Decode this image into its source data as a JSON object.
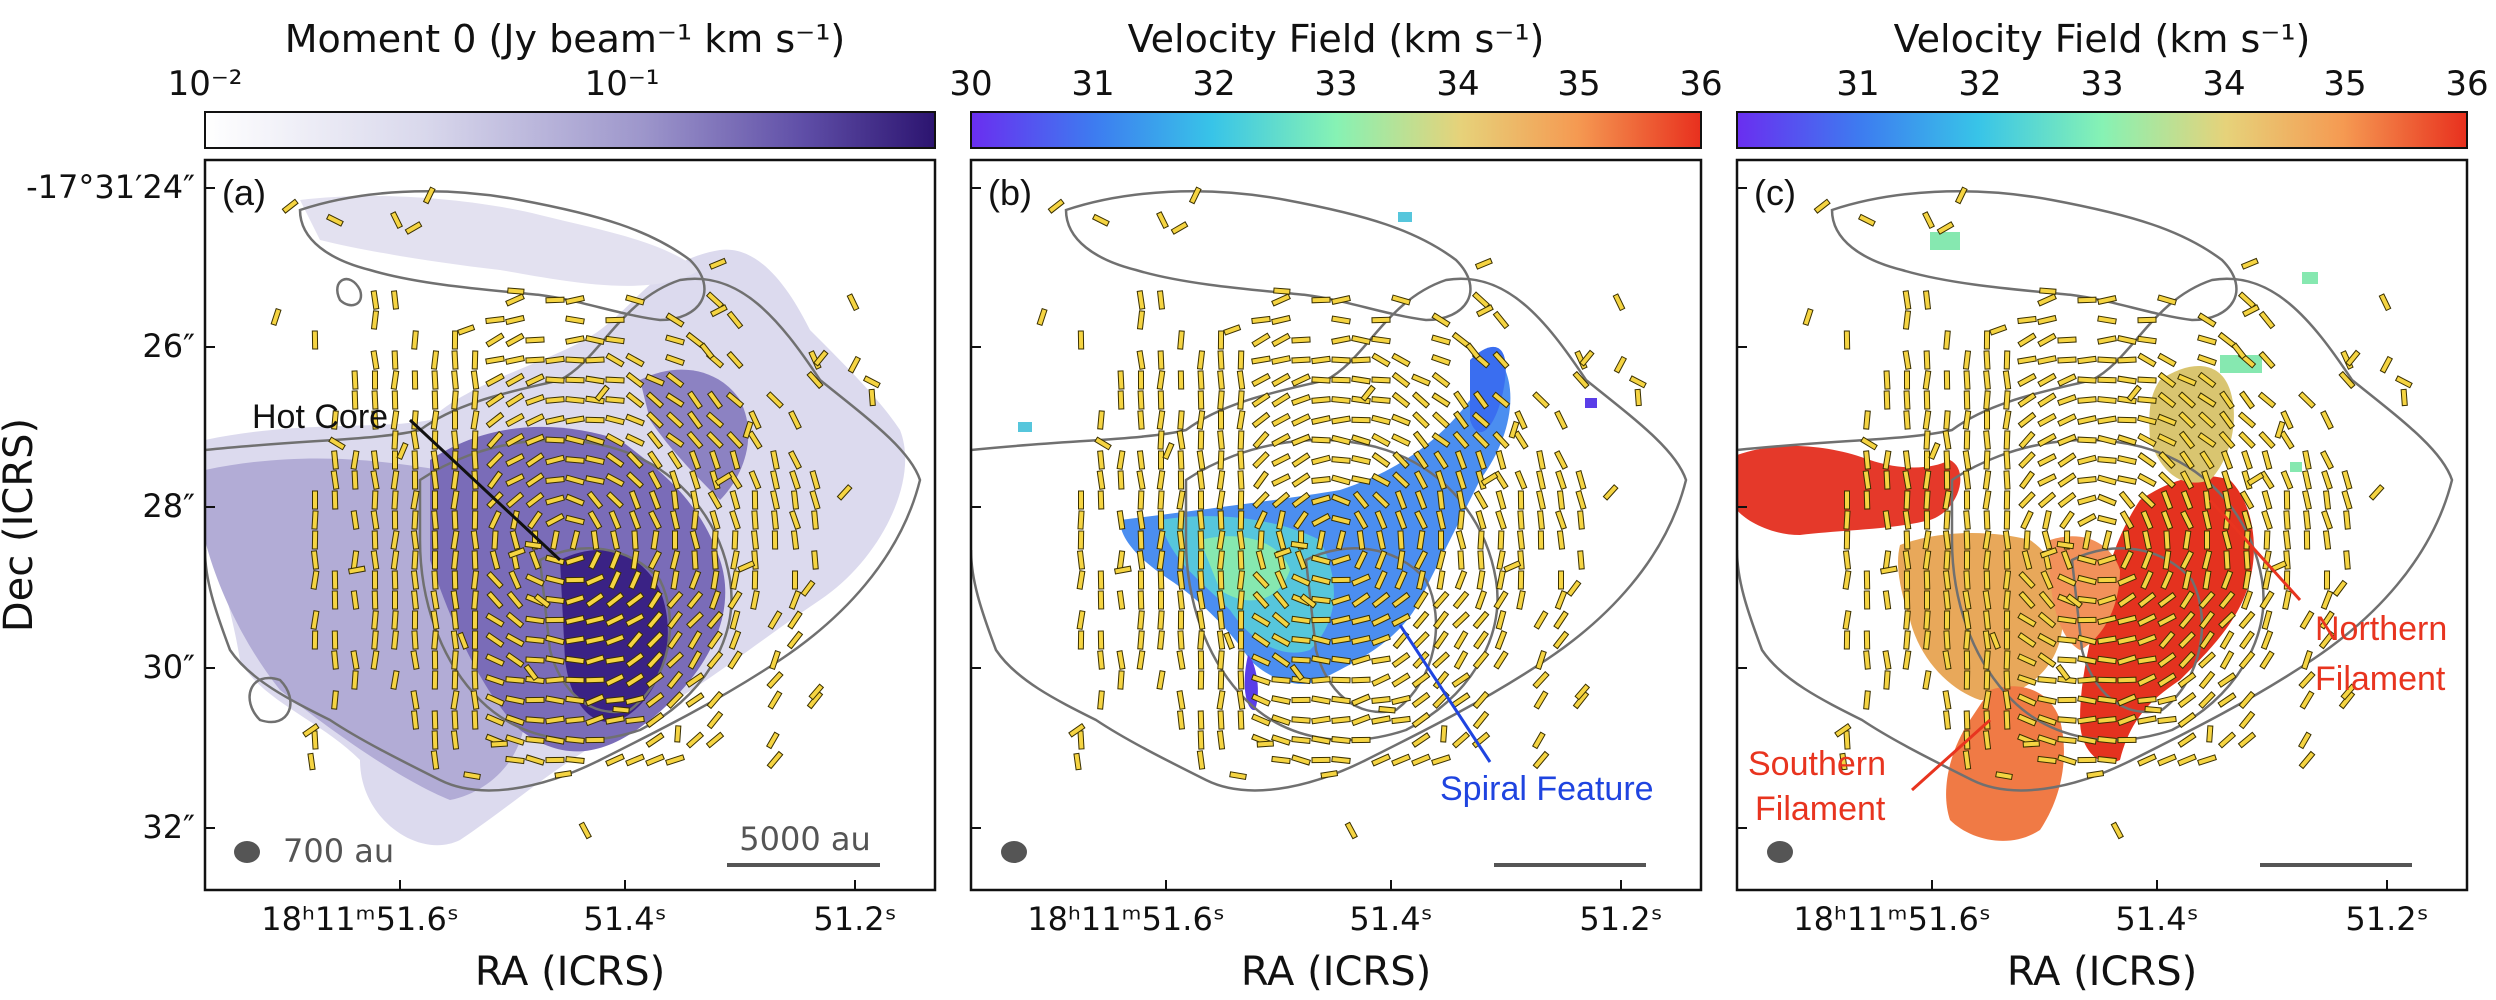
{
  "figure": {
    "panels": [
      {
        "id": "a",
        "label": "(a)",
        "colorbar": {
          "title": "Moment 0 (Jy beam⁻¹ km s⁻¹)",
          "ticks": [
            "10⁻²",
            "10⁻¹"
          ],
          "colors": [
            "#ffffff",
            "#d9d8ec",
            "#9d96cb",
            "#5f4ea7",
            "#2c1470"
          ]
        },
        "annotations": [
          {
            "text": "Hot Core",
            "color": "#111111"
          }
        ],
        "beam_label": "700 au",
        "scalebar_label": "5000 au"
      },
      {
        "id": "b",
        "label": "(b)",
        "colorbar": {
          "title": "Velocity Field (km s⁻¹)",
          "ticks": [
            "30",
            "31",
            "32",
            "33",
            "34",
            "35",
            "36"
          ],
          "colors": [
            "#6a2ef0",
            "#3d7cf0",
            "#38c4e8",
            "#86f2b4",
            "#e6d27a",
            "#f59a52",
            "#e8301e"
          ]
        },
        "annotations": [
          {
            "text": "Spiral Feature",
            "color": "#1f44e0"
          }
        ]
      },
      {
        "id": "c",
        "label": "(c)",
        "colorbar": {
          "title": "Velocity Field (km s⁻¹)",
          "ticks": [
            "31",
            "32",
            "33",
            "34",
            "35",
            "36"
          ],
          "colors": [
            "#6a2ef0",
            "#3d7cf0",
            "#38c4e8",
            "#86f2b4",
            "#e6d27a",
            "#f59a52",
            "#e8301e"
          ]
        },
        "annotations": [
          {
            "text": "Northern",
            "color": "#e8341f"
          },
          {
            "text": "Filament",
            "color": "#e8341f"
          },
          {
            "text": "Southern",
            "color": "#e8341f"
          },
          {
            "text": "Filament",
            "color": "#e8341f"
          }
        ]
      }
    ],
    "x_ticks": [
      "18ʰ11ᵐ51.6ˢ",
      "51.4ˢ",
      "51.2ˢ"
    ],
    "x_axis_title": "RA (ICRS)",
    "y_ticks": [
      "-17°31′24″",
      "26″",
      "28″",
      "30″",
      "32″"
    ],
    "y_axis_title": "Dec (ICRS)",
    "contour_color": "#707070",
    "vector_color": "#f5d442"
  }
}
